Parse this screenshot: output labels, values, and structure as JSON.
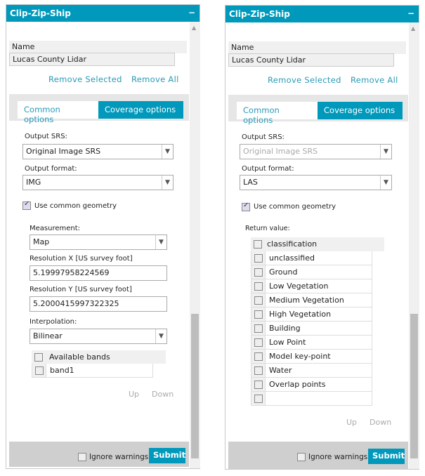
{
  "left": {
    "title": "Clip-Zip-Ship",
    "name_header": "Name",
    "name_value": "Lucas County Lidar",
    "remove_selected": "Remove Selected",
    "remove_all": "Remove All",
    "tabs": [
      "Common options",
      "Coverage options"
    ],
    "active_tab": "Coverage options",
    "output_srs_label": "Output SRS:",
    "output_srs": "Original Image SRS",
    "output_format_label": "Output format:",
    "output_format": "IMG",
    "use_common_geometry": "Use common geometry",
    "use_common_geometry_checked": true,
    "measurement_label": "Measurement:",
    "measurement": "Map",
    "res_x_label": "Resolution X [US survey foot]",
    "res_x": "5.19997958224569",
    "res_y_label": "Resolution Y [US survey foot]",
    "res_y": "5.2000415997322325",
    "interpolation_label": "Interpolation:",
    "interpolation": "Bilinear",
    "bands_header": "Available bands",
    "bands": [
      "band1"
    ],
    "up": "Up",
    "down": "Down",
    "ignore_warnings": "Ignore warnings",
    "submit": "Submit"
  },
  "right": {
    "title": "Clip-Zip-Ship",
    "name_header": "Name",
    "name_value": "Lucas County Lidar",
    "remove_selected": "Remove Selected",
    "remove_all": "Remove All",
    "tabs": [
      "Common options",
      "Coverage options"
    ],
    "active_tab": "Coverage options",
    "output_srs_label": "Output SRS:",
    "output_srs": "Original Image SRS",
    "output_srs_disabled": true,
    "output_format_label": "Output format:",
    "output_format": "LAS",
    "use_common_geometry": "Use common geometry",
    "use_common_geometry_checked": true,
    "return_value_label": "Return value:",
    "class_header": "classification",
    "classes": [
      "unclassified",
      "Ground",
      "Low Vegetation",
      "Medium Vegetation",
      "High Vegetation",
      "Building",
      "Low Point",
      "Model key-point",
      "Water",
      "Overlap points",
      ""
    ],
    "up": "Up",
    "down": "Down",
    "ignore_warnings": "Ignore warnings",
    "submit": "Submit"
  },
  "colors": {
    "accent": "#0099bb",
    "link": "#2a9ab8"
  }
}
